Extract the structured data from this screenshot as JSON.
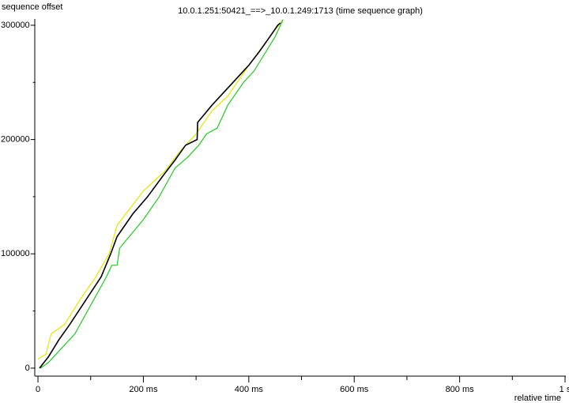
{
  "chart_data": {
    "type": "line",
    "title": "10.0.1.251:50421_==>_10.0.1.249:1713 (time sequence graph)",
    "y_label": "sequence offset",
    "x_label": "relative time",
    "xlim": [
      -5,
      1000
    ],
    "ylim": [
      -7000,
      305500
    ],
    "xticks": [
      0,
      {
        "value": 200,
        "label": "200 ms"
      },
      {
        "value": 400,
        "label": "400 ms"
      },
      {
        "value": 600,
        "label": "600 ms"
      },
      {
        "value": 800,
        "label": "800 ms"
      },
      {
        "value": 1000,
        "label": "1 s"
      }
    ],
    "xminorticks": [
      100,
      300,
      500,
      700,
      900
    ],
    "yticks": [
      0,
      100000,
      200000,
      300000
    ],
    "yminorticks": [
      50000,
      150000,
      250000
    ],
    "series": [
      {
        "color": "#e6e600",
        "x": [
          0,
          15,
          25,
          50,
          80,
          110,
          135,
          150,
          200,
          240,
          270,
          300,
          330,
          360,
          400,
          440,
          465
        ],
        "values": [
          8000,
          12000,
          30000,
          38000,
          60000,
          80000,
          100000,
          125000,
          155000,
          172000,
          190000,
          205000,
          225000,
          238000,
          265000,
          290000,
          305000
        ]
      },
      {
        "color": "#22cc22",
        "x": [
          5,
          20,
          40,
          70,
          100,
          130,
          140,
          150,
          155,
          200,
          230,
          260,
          285,
          305,
          320,
          340,
          360,
          390,
          410,
          430,
          450,
          465
        ],
        "values": [
          0,
          5000,
          15000,
          30000,
          55000,
          80000,
          90000,
          90000,
          105000,
          130000,
          150000,
          175000,
          185000,
          195000,
          205000,
          210000,
          230000,
          250000,
          260000,
          275000,
          290000,
          305000
        ]
      },
      {
        "color": "#000000",
        "x": [
          3,
          20,
          40,
          60,
          80,
          100,
          120,
          138,
          150,
          180,
          208,
          240,
          260,
          280,
          302,
          303,
          330,
          370,
          400,
          420,
          440,
          455,
          460
        ],
        "values": [
          0,
          10000,
          25000,
          38000,
          52000,
          66000,
          80000,
          100000,
          115000,
          135000,
          150000,
          170000,
          182000,
          195000,
          200000,
          215000,
          230000,
          250000,
          265000,
          277000,
          290000,
          300000,
          302000
        ]
      }
    ]
  }
}
